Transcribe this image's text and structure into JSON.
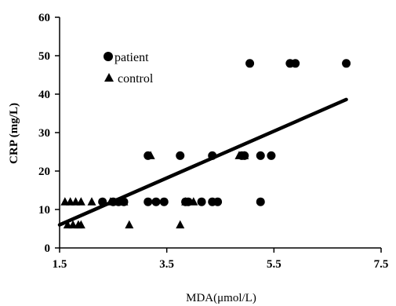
{
  "chart_data": {
    "type": "scatter",
    "xlabel": "MDA(μmol/L)",
    "ylabel": "CRP (mg/L)",
    "xlim": [
      1.5,
      7.5
    ],
    "ylim": [
      0,
      60
    ],
    "x_ticks": [
      "1.5",
      "3.5",
      "5.5",
      "7.5"
    ],
    "y_ticks": [
      "0",
      "10",
      "20",
      "30",
      "40",
      "50",
      "60"
    ],
    "grid": false,
    "legend_position": "top-left",
    "series": [
      {
        "name": "patient",
        "marker": "circle",
        "color": "#000000",
        "points": [
          [
            2.3,
            12
          ],
          [
            2.5,
            12
          ],
          [
            2.6,
            12
          ],
          [
            2.7,
            12
          ],
          [
            3.15,
            24
          ],
          [
            3.15,
            12
          ],
          [
            3.3,
            12
          ],
          [
            3.45,
            12
          ],
          [
            3.75,
            24
          ],
          [
            3.85,
            12
          ],
          [
            3.9,
            12
          ],
          [
            4.15,
            12
          ],
          [
            4.35,
            24
          ],
          [
            4.35,
            12
          ],
          [
            4.45,
            12
          ],
          [
            4.9,
            24
          ],
          [
            4.95,
            24
          ],
          [
            5.05,
            48
          ],
          [
            5.25,
            24
          ],
          [
            5.25,
            12
          ],
          [
            5.45,
            24
          ],
          [
            5.8,
            48
          ],
          [
            5.9,
            48
          ],
          [
            6.85,
            48
          ]
        ]
      },
      {
        "name": "control",
        "marker": "triangle",
        "color": "#000000",
        "points": [
          [
            1.6,
            12
          ],
          [
            1.7,
            12
          ],
          [
            1.8,
            12
          ],
          [
            1.9,
            12
          ],
          [
            2.1,
            12
          ],
          [
            2.45,
            12
          ],
          [
            2.6,
            12
          ],
          [
            2.7,
            12
          ],
          [
            1.65,
            6
          ],
          [
            1.75,
            6
          ],
          [
            1.85,
            6
          ],
          [
            1.9,
            6
          ],
          [
            2.8,
            6
          ],
          [
            3.75,
            6
          ],
          [
            3.2,
            24
          ],
          [
            3.85,
            12
          ],
          [
            4.0,
            12
          ],
          [
            4.85,
            24
          ],
          [
            4.95,
            24
          ]
        ]
      }
    ],
    "trendline": {
      "x": [
        1.5,
        6.85
      ],
      "y": [
        6.0,
        38.6
      ],
      "color": "#000000"
    }
  }
}
